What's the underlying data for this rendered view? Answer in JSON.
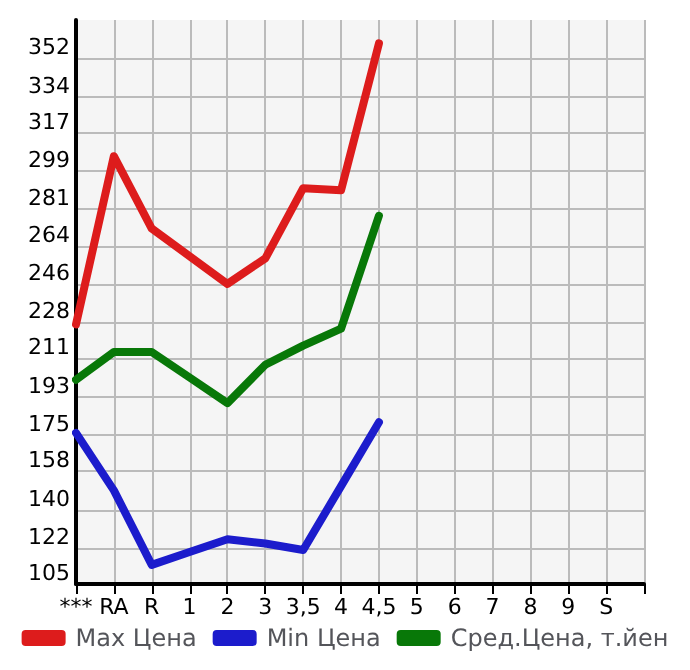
{
  "chart_data": {
    "type": "line",
    "categories": [
      "***",
      "RA",
      "R",
      "1",
      "2",
      "3",
      "3,5",
      "4",
      "4,5",
      "5",
      "6",
      "7",
      "8",
      "9",
      "S",
      null
    ],
    "series": [
      {
        "name": "Max Цена",
        "color": "#dd1c1c",
        "values": [
          227,
          306,
          272,
          259,
          246,
          258,
          291,
          290,
          359,
          null,
          null,
          null,
          null,
          null,
          null,
          null
        ]
      },
      {
        "name": "Min Цена",
        "color": "#1c1ccc",
        "values": [
          176,
          149,
          114,
          120,
          126,
          124,
          121,
          151,
          181,
          null,
          null,
          null,
          null,
          null,
          null,
          null
        ]
      },
      {
        "name": "Сред.Цена, т.йен",
        "color": "#087808",
        "values": [
          201,
          214,
          214,
          202,
          190,
          208,
          217,
          225,
          278,
          null,
          null,
          null,
          null,
          null,
          null,
          null
        ]
      }
    ],
    "ylim": [
      105,
      370
    ],
    "yticks": [
      105,
      122,
      140,
      158,
      175,
      193,
      211,
      228,
      246,
      264,
      281,
      299,
      317,
      334,
      352
    ],
    "grid": true,
    "legend": "bottom",
    "marker": "none",
    "line_style": "solid"
  }
}
